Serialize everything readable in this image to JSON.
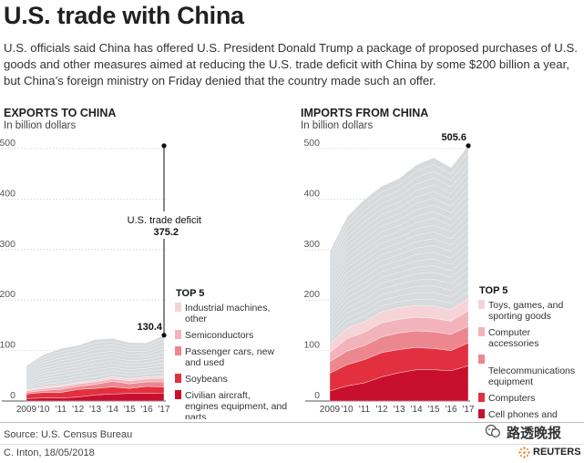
{
  "header": {
    "title": "U.S. trade with China",
    "subtitle": "U.S. officials said China has offered U.S. President Donald Trump a package of proposed purchases of U.S. goods and other measures aimed at reducing the U.S. trade deficit with China by some $200 billion a year, but China’s foreign ministry on Friday denied that the country made such an offer."
  },
  "footer": {
    "source": "Source: U.S. Census Bureau",
    "credit": "C. Inton, 18/05/2018",
    "brand": "REUTERS",
    "watermark": "路透晚报"
  },
  "colors": {
    "other_goods": "#d6dadc",
    "top1": "#f6d3d6",
    "top2": "#f2b4ba",
    "top3": "#ec8790",
    "top4": "#e3303e",
    "top5": "#c8102e"
  },
  "chart_data": [
    {
      "type": "area",
      "stacked": true,
      "title": "EXPORTS TO CHINA",
      "unit_label": "In billion dollars",
      "x": [
        "2009",
        "'10",
        "'11",
        "'12",
        "'13",
        "'14",
        "'15",
        "'16",
        "'17"
      ],
      "ylim": [
        0,
        500
      ],
      "yticks": [
        "0",
        "100",
        "200",
        "300",
        "400",
        "500"
      ],
      "legend_title": "TOP 5",
      "series": [
        {
          "name": "Civilian aircraft, engines equipment, and parts",
          "color": "#c8102e",
          "values": [
            5,
            6,
            6,
            8,
            12,
            14,
            15,
            15,
            16
          ]
        },
        {
          "name": "Soybeans",
          "color": "#e3303e",
          "values": [
            9,
            11,
            11,
            15,
            13,
            14,
            10,
            14,
            12
          ]
        },
        {
          "name": "Passenger cars, new and used",
          "color": "#ec8790",
          "values": [
            3,
            4,
            6,
            6,
            8,
            11,
            9,
            9,
            10
          ]
        },
        {
          "name": "Semiconductors",
          "color": "#f2b4ba",
          "values": [
            3,
            4,
            5,
            5,
            5,
            5,
            6,
            6,
            7
          ]
        },
        {
          "name": "Industrial machines, other",
          "color": "#f6d3d6",
          "values": [
            2,
            3,
            3,
            3,
            3,
            4,
            4,
            4,
            4
          ]
        },
        {
          "values": [
            47.6,
            63.8,
            72.9,
            73.3,
            80.8,
            75.9,
            71.7,
            67.4,
            81.4
          ]
        }
      ],
      "totals": [
        69.6,
        91.9,
        104.1,
        110.5,
        121.9,
        123.7,
        115.9,
        115.6,
        130.4
      ],
      "value_label": "130.4",
      "annotation": {
        "label": "U.S. trade deficit",
        "value": "375.2",
        "x": "'17",
        "from": 130.4,
        "to": 505.6
      }
    },
    {
      "type": "area",
      "stacked": true,
      "title": "IMPORTS FROM CHINA",
      "unit_label": "In billion dollars",
      "x": [
        "2009",
        "'10",
        "'11",
        "'12",
        "'13",
        "'14",
        "'15",
        "'16",
        "'17"
      ],
      "ylim": [
        0,
        500
      ],
      "yticks": [
        "0",
        "100",
        "200",
        "300",
        "400",
        "500"
      ],
      "legend_title": "TOP 5",
      "series": [
        {
          "name": "Cell phones and other household goods",
          "color": "#c8102e",
          "values": [
            20,
            30,
            36,
            48,
            56,
            62,
            62,
            60,
            70
          ]
        },
        {
          "name": "Computers",
          "color": "#e3303e",
          "values": [
            35,
            42,
            46,
            48,
            46,
            44,
            42,
            40,
            45
          ]
        },
        {
          "name": "Telecommunications equipment",
          "color": "#ec8790",
          "values": [
            23,
            27,
            28,
            31,
            33,
            33,
            33,
            32,
            33
          ]
        },
        {
          "name": "Computer accessories",
          "color": "#f2b4ba",
          "values": [
            18,
            25,
            26,
            28,
            27,
            27,
            27,
            26,
            31
          ]
        },
        {
          "name": "Toys, games, and sporting goods",
          "color": "#f6d3d6",
          "values": [
            18,
            20,
            21,
            22,
            23,
            23,
            24,
            23,
            24
          ]
        },
        {
          "values": [
            182.3,
            220.8,
            242.1,
            248.5,
            255.4,
            278.4,
            294,
            281.3,
            302.6
          ]
        }
      ],
      "totals": [
        296.3,
        364.8,
        399.1,
        425.5,
        440.4,
        467.4,
        481,
        462.3,
        505.6
      ],
      "value_label": "505.6"
    }
  ]
}
